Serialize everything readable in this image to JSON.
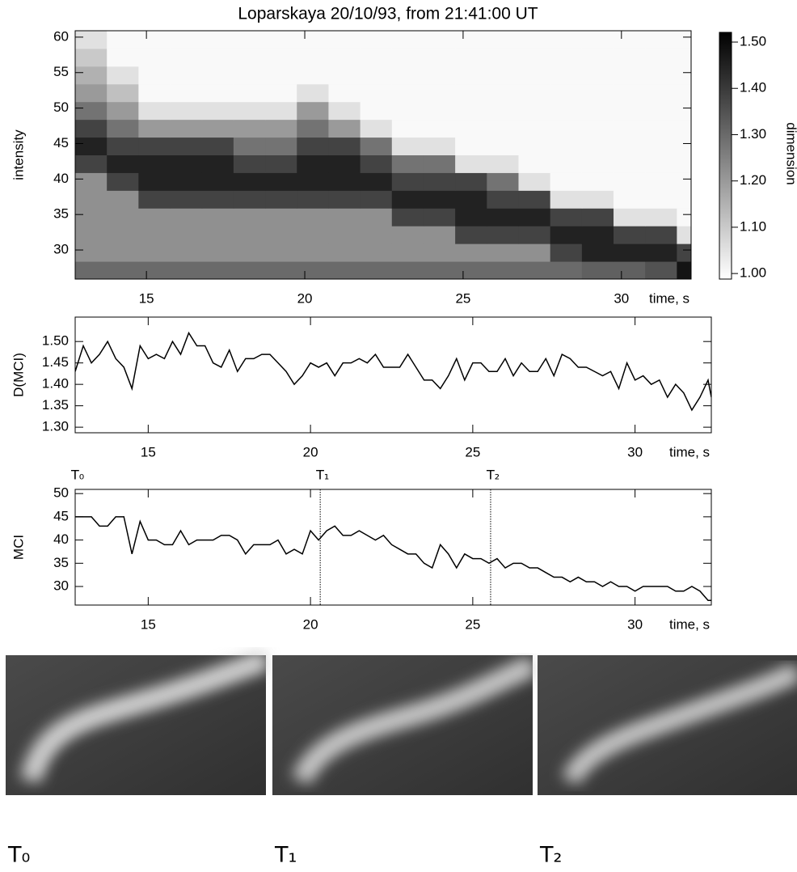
{
  "chart_data": [
    {
      "type": "heatmap",
      "title": "Loparskaya 20/10/93, from 21:41:00 UT",
      "xlabel": "time, s",
      "ylabel": "intensity",
      "xlim": [
        12.75,
        32.2
      ],
      "ylim": [
        25.9,
        60.9
      ],
      "xticks": [
        15,
        20,
        25,
        30
      ],
      "yticks": [
        30,
        35,
        40,
        45,
        50,
        55,
        60
      ],
      "xbins": [
        12.75,
        13.75,
        14.75,
        15.75,
        16.75,
        17.75,
        18.75,
        19.75,
        20.75,
        21.75,
        22.75,
        23.75,
        24.75,
        25.75,
        26.75,
        27.75,
        28.75,
        29.75,
        30.75,
        31.75,
        32.2
      ],
      "ybins": [
        25.9,
        28.4,
        30.9,
        33.4,
        35.9,
        38.4,
        40.9,
        43.4,
        45.9,
        48.4,
        50.9,
        53.4,
        55.9,
        58.4,
        60.9
      ],
      "z": [
        [
          1.3,
          1.3,
          1.3,
          1.3,
          1.3,
          1.3,
          1.3,
          1.3,
          1.3,
          1.3,
          1.3,
          1.3,
          1.3,
          1.3,
          1.3,
          1.3,
          1.32,
          1.32,
          1.35,
          1.48
        ],
        [
          1.22,
          1.22,
          1.22,
          1.22,
          1.22,
          1.22,
          1.22,
          1.22,
          1.22,
          1.22,
          1.22,
          1.22,
          1.22,
          1.22,
          1.22,
          1.38,
          1.45,
          1.45,
          1.45,
          1.38
        ],
        [
          1.22,
          1.22,
          1.22,
          1.22,
          1.22,
          1.22,
          1.22,
          1.22,
          1.22,
          1.22,
          1.22,
          1.22,
          1.38,
          1.38,
          1.38,
          1.45,
          1.45,
          1.38,
          1.38,
          1.05
        ],
        [
          1.22,
          1.22,
          1.22,
          1.22,
          1.22,
          1.22,
          1.22,
          1.22,
          1.22,
          1.22,
          1.38,
          1.38,
          1.45,
          1.45,
          1.45,
          1.38,
          1.38,
          1.05,
          1.05,
          1
        ],
        [
          1.22,
          1.22,
          1.38,
          1.38,
          1.38,
          1.38,
          1.38,
          1.38,
          1.38,
          1.38,
          1.45,
          1.45,
          1.45,
          1.38,
          1.38,
          1.05,
          1.05,
          1,
          1,
          1
        ],
        [
          1.22,
          1.38,
          1.45,
          1.45,
          1.45,
          1.45,
          1.45,
          1.45,
          1.45,
          1.45,
          1.38,
          1.38,
          1.38,
          1.28,
          1.05,
          1,
          1,
          1,
          1,
          1
        ],
        [
          1.38,
          1.45,
          1.45,
          1.45,
          1.45,
          1.38,
          1.38,
          1.45,
          1.45,
          1.38,
          1.28,
          1.28,
          1.05,
          1.05,
          1,
          1,
          1,
          1,
          1,
          1
        ],
        [
          1.45,
          1.38,
          1.38,
          1.38,
          1.38,
          1.28,
          1.28,
          1.38,
          1.38,
          1.28,
          1.05,
          1.05,
          1,
          1,
          1,
          1,
          1,
          1,
          1,
          1
        ],
        [
          1.38,
          1.28,
          1.2,
          1.2,
          1.2,
          1.2,
          1.2,
          1.28,
          1.2,
          1.05,
          1,
          1,
          1,
          1,
          1,
          1,
          1,
          1,
          1,
          1
        ],
        [
          1.28,
          1.2,
          1.05,
          1.05,
          1.05,
          1.05,
          1.05,
          1.2,
          1.05,
          1,
          1,
          1,
          1,
          1,
          1,
          1,
          1,
          1,
          1,
          1
        ],
        [
          1.2,
          1.12,
          1,
          1,
          1,
          1,
          1,
          1.05,
          1,
          1,
          1,
          1,
          1,
          1,
          1,
          1,
          1,
          1,
          1,
          1
        ],
        [
          1.15,
          1.05,
          1,
          1,
          1,
          1,
          1,
          1,
          1,
          1,
          1,
          1,
          1,
          1,
          1,
          1,
          1,
          1,
          1,
          1
        ],
        [
          1.1,
          1,
          1,
          1,
          1,
          1,
          1,
          1,
          1,
          1,
          1,
          1,
          1,
          1,
          1,
          1,
          1,
          1,
          1,
          1
        ],
        [
          1.05,
          1,
          1,
          1,
          1,
          1,
          1,
          1,
          1,
          1,
          1,
          1,
          1,
          1,
          1,
          1,
          1,
          1,
          1,
          1
        ]
      ],
      "colors": {
        "low": "#ffffff",
        "high": "#000000"
      },
      "colorbar": {
        "label": "dimension",
        "lim": [
          0.988,
          1.521
        ],
        "ticks": [
          {
            "value": 1,
            "label": "1.00"
          },
          {
            "value": 1.1,
            "label": "1.10"
          },
          {
            "value": 1.2,
            "label": "1.20"
          },
          {
            "value": 1.3,
            "label": "1.30"
          },
          {
            "value": 1.4,
            "label": "1.40"
          },
          {
            "value": 1.5,
            "label": "1.50"
          }
        ]
      }
    },
    {
      "type": "line",
      "xlabel": "time, s",
      "ylabel": "D(MCI)",
      "xlim": [
        12.75,
        32.35
      ],
      "ylim": [
        1.287,
        1.557
      ],
      "xticks": [
        15,
        20,
        25,
        30
      ],
      "yticks": [
        {
          "value": 1.3,
          "label": "1.30"
        },
        {
          "value": 1.35,
          "label": "1.35"
        },
        {
          "value": 1.4,
          "label": "1.40"
        },
        {
          "value": 1.45,
          "label": "1.45"
        },
        {
          "value": 1.5,
          "label": "1.50"
        }
      ],
      "x": [
        12.75,
        13,
        13.25,
        13.5,
        13.75,
        14,
        14.25,
        14.5,
        14.75,
        15,
        15.25,
        15.5,
        15.75,
        16,
        16.25,
        16.5,
        16.75,
        17,
        17.25,
        17.5,
        17.75,
        18,
        18.25,
        18.5,
        18.75,
        19,
        19.25,
        19.5,
        19.75,
        20,
        20.25,
        20.5,
        20.75,
        21,
        21.25,
        21.5,
        21.75,
        22,
        22.25,
        22.5,
        22.75,
        23,
        23.25,
        23.5,
        23.75,
        24,
        24.25,
        24.5,
        24.75,
        25,
        25.25,
        25.5,
        25.75,
        26,
        26.25,
        26.5,
        26.75,
        27,
        27.25,
        27.5,
        27.75,
        28,
        28.25,
        28.5,
        28.75,
        29,
        29.25,
        29.5,
        29.75,
        30,
        30.25,
        30.5,
        30.75,
        31,
        31.25,
        31.5,
        31.75,
        32,
        32.25,
        32.35
      ],
      "color": "#000000",
      "values": [
        1.43,
        1.49,
        1.45,
        1.47,
        1.5,
        1.46,
        1.44,
        1.39,
        1.49,
        1.46,
        1.47,
        1.46,
        1.5,
        1.47,
        1.52,
        1.49,
        1.49,
        1.45,
        1.44,
        1.48,
        1.43,
        1.46,
        1.46,
        1.47,
        1.47,
        1.45,
        1.43,
        1.4,
        1.42,
        1.45,
        1.44,
        1.45,
        1.42,
        1.45,
        1.45,
        1.46,
        1.45,
        1.47,
        1.44,
        1.44,
        1.44,
        1.47,
        1.44,
        1.41,
        1.41,
        1.39,
        1.42,
        1.46,
        1.41,
        1.45,
        1.45,
        1.43,
        1.43,
        1.46,
        1.42,
        1.45,
        1.43,
        1.43,
        1.46,
        1.42,
        1.47,
        1.46,
        1.44,
        1.44,
        1.43,
        1.42,
        1.43,
        1.39,
        1.45,
        1.41,
        1.42,
        1.4,
        1.41,
        1.37,
        1.4,
        1.38,
        1.34,
        1.37,
        1.41,
        1.37
      ]
    },
    {
      "type": "line",
      "xlabel": "time, s",
      "ylabel": "MCI",
      "xlim": [
        12.75,
        32.35
      ],
      "ylim": [
        26,
        50.9
      ],
      "xticks": [
        15,
        20,
        25,
        30
      ],
      "yticks": [
        30,
        35,
        40,
        45,
        50
      ],
      "x": [
        12.75,
        13,
        13.25,
        13.5,
        13.75,
        14,
        14.25,
        14.5,
        14.75,
        15,
        15.25,
        15.5,
        15.75,
        16,
        16.25,
        16.5,
        16.75,
        17,
        17.25,
        17.5,
        17.75,
        18,
        18.25,
        18.5,
        18.75,
        19,
        19.25,
        19.5,
        19.75,
        20,
        20.25,
        20.5,
        20.75,
        21,
        21.25,
        21.5,
        21.75,
        22,
        22.25,
        22.5,
        22.75,
        23,
        23.25,
        23.5,
        23.75,
        24,
        24.25,
        24.5,
        24.75,
        25,
        25.25,
        25.5,
        25.75,
        26,
        26.25,
        26.5,
        26.75,
        27,
        27.25,
        27.5,
        27.75,
        28,
        28.25,
        28.5,
        28.75,
        29,
        29.25,
        29.5,
        29.75,
        30,
        30.25,
        30.5,
        30.75,
        31,
        31.25,
        31.5,
        31.75,
        32,
        32.25,
        32.35
      ],
      "color": "#000000",
      "values": [
        45,
        45,
        45,
        43,
        43,
        45,
        45,
        37,
        44,
        40,
        40,
        39,
        39,
        42,
        39,
        40,
        40,
        40,
        41,
        41,
        40,
        37,
        39,
        39,
        39,
        40,
        37,
        38,
        37,
        42,
        40,
        42,
        43,
        41,
        41,
        42,
        41,
        40,
        41,
        39,
        38,
        37,
        37,
        35,
        34,
        39,
        37,
        34,
        37,
        36,
        36,
        35,
        36,
        34,
        35,
        35,
        34,
        34,
        33,
        32,
        32,
        31,
        32,
        31,
        31,
        30,
        31,
        30,
        30,
        29,
        30,
        30,
        30,
        30,
        29,
        29,
        30,
        29,
        27,
        27
      ],
      "markers": [
        {
          "x": 12.75,
          "label": "T₀"
        },
        {
          "x": 20.3,
          "label": "T₁"
        },
        {
          "x": 25.55,
          "label": "T₂"
        }
      ]
    }
  ],
  "images": [
    {
      "label": "T₀"
    },
    {
      "label": "T₁"
    },
    {
      "label": "T₂"
    }
  ]
}
